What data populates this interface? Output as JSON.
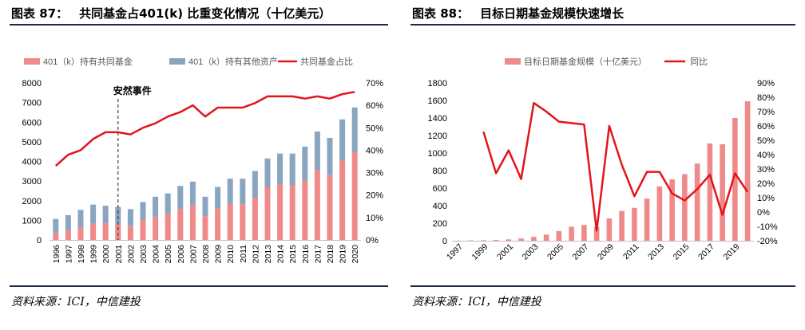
{
  "header": {
    "left_title_num": "图表 87：",
    "left_title": "共同基金占401(k) 比重变化情况（十亿美元）",
    "right_title_num": "图表 88：",
    "right_title": "目标日期基金规模快速增长"
  },
  "footer": {
    "left_source": "资料来源：ICI，中信建投",
    "right_source": "资料来源：ICI，中信建投"
  },
  "colors": {
    "bar_pink": "#f08a8a",
    "bar_blue": "#8aa5c0",
    "line_red": "#e3141b",
    "axis_text": "#595959",
    "rule": "#1f2b4d"
  },
  "chart_data": [
    {
      "id": "chart87",
      "type": "bar",
      "stacked": true,
      "categories": [
        "1996",
        "1997",
        "1998",
        "1999",
        "2000",
        "2001",
        "2002",
        "2003",
        "2004",
        "2005",
        "2006",
        "2007",
        "2008",
        "2009",
        "2010",
        "2011",
        "2012",
        "2013",
        "2014",
        "2015",
        "2016",
        "2017",
        "2018",
        "2019",
        "2020"
      ],
      "series": [
        {
          "name": "401（k）持有共同基金",
          "kind": "bar",
          "axis": "left",
          "values": [
            350,
            480,
            620,
            820,
            850,
            830,
            720,
            1000,
            1180,
            1320,
            1580,
            1760,
            1210,
            1600,
            1850,
            1820,
            2130,
            2680,
            2840,
            2780,
            3020,
            3570,
            3300,
            4040,
            4450
          ]
        },
        {
          "name": "401（k）持有其他资产",
          "kind": "bar",
          "axis": "left",
          "values": [
            720,
            780,
            910,
            980,
            890,
            850,
            850,
            930,
            1020,
            1050,
            1170,
            1210,
            990,
            1100,
            1270,
            1300,
            1380,
            1470,
            1560,
            1620,
            1730,
            1950,
            1900,
            2100,
            2300
          ]
        },
        {
          "name": "共同基金占比",
          "kind": "line",
          "axis": "right",
          "values": [
            33,
            38,
            40,
            45,
            48,
            48,
            47,
            50,
            52,
            55,
            57,
            60,
            55,
            59,
            59,
            59,
            61,
            64,
            64,
            64,
            63,
            64,
            63,
            65,
            66
          ]
        }
      ],
      "left_axis": {
        "min": 0,
        "max": 8000,
        "ticks": [
          "0",
          "1000",
          "2000",
          "3000",
          "4000",
          "5000",
          "6000",
          "7000",
          "8000"
        ]
      },
      "right_axis": {
        "min": 0,
        "max": 70,
        "ticks": [
          "0%",
          "10%",
          "20%",
          "30%",
          "40%",
          "50%",
          "60%",
          "70%"
        ]
      },
      "annotation": {
        "label": "安然事件",
        "category": "2001"
      }
    },
    {
      "id": "chart88",
      "type": "bar",
      "categories": [
        "1997",
        "1998",
        "1999",
        "2000",
        "2001",
        "2002",
        "2003",
        "2004",
        "2005",
        "2006",
        "2007",
        "2008",
        "2009",
        "2010",
        "2011",
        "2012",
        "2013",
        "2014",
        "2015",
        "2016",
        "2017",
        "2018",
        "2019",
        "2020"
      ],
      "tick_labels": [
        "1997",
        "1999",
        "2001",
        "2003",
        "2005",
        "2007",
        "2009",
        "2011",
        "2013",
        "2015",
        "2017",
        "2019"
      ],
      "series": [
        {
          "name": "目标日期基金规模（十亿美元）",
          "kind": "bar",
          "axis": "left",
          "values": [
            2,
            4,
            6,
            10,
            15,
            25,
            45,
            70,
            110,
            160,
            180,
            160,
            255,
            340,
            375,
            480,
            620,
            700,
            760,
            880,
            1110,
            1100,
            1400,
            1590
          ]
        },
        {
          "name": "同比",
          "kind": "line",
          "axis": "right",
          "values": [
            null,
            null,
            56,
            27,
            43,
            23,
            76,
            70,
            63,
            62,
            61,
            -13,
            60,
            33,
            11,
            28,
            28,
            13,
            8,
            16,
            26,
            -2,
            27,
            14
          ]
        }
      ],
      "left_axis": {
        "min": 0,
        "max": 1800,
        "ticks": [
          "0",
          "200",
          "400",
          "600",
          "800",
          "1000",
          "1200",
          "1400",
          "1600",
          "1800"
        ]
      },
      "right_axis": {
        "min": -20,
        "max": 90,
        "ticks": [
          "-20%",
          "-10%",
          "0%",
          "10%",
          "20%",
          "30%",
          "40%",
          "50%",
          "60%",
          "70%",
          "80%",
          "90%"
        ]
      }
    }
  ]
}
